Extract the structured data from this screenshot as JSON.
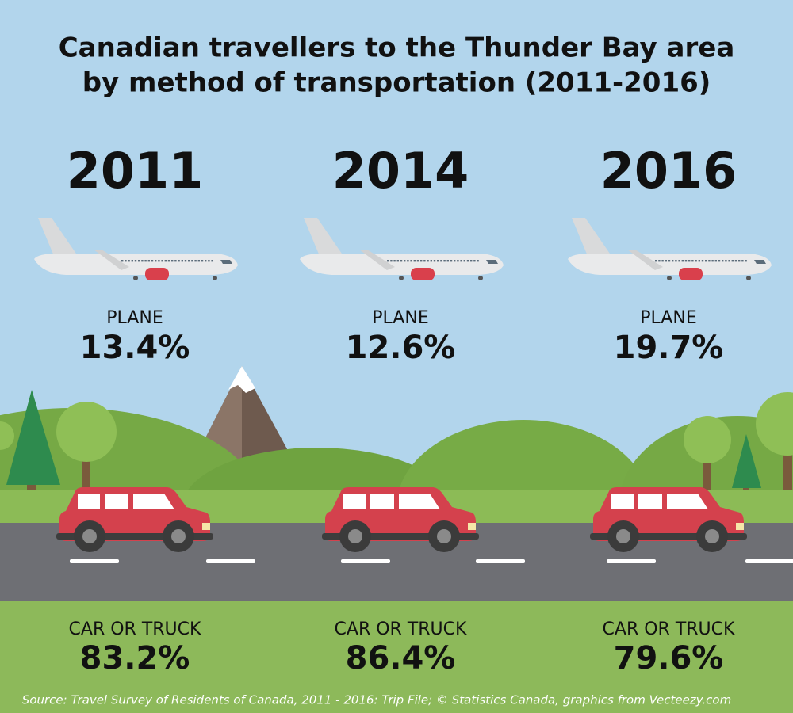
{
  "title": [
    "Canadian travellers to the Thunder Bay area",
    "by method of transportation (2011-2016)"
  ],
  "years": [
    {
      "year": "2011",
      "plane_label": "PLANE",
      "plane_share": "13.4%",
      "car_label": "CAR OR TRUCK",
      "car_share": "83.2%"
    },
    {
      "year": "2014",
      "plane_label": "PLANE",
      "plane_share": "12.6%",
      "car_label": "CAR OR TRUCK",
      "car_share": "86.4%"
    },
    {
      "year": "2016",
      "plane_label": "PLANE",
      "plane_share": "19.7%",
      "car_label": "CAR OR TRUCK",
      "car_share": "79.6%"
    }
  ],
  "source": "Source: Travel Survey of Residents of Canada, 2011 - 2016: Trip File; © Statistics Canada, graphics from Vecteezy.com"
}
